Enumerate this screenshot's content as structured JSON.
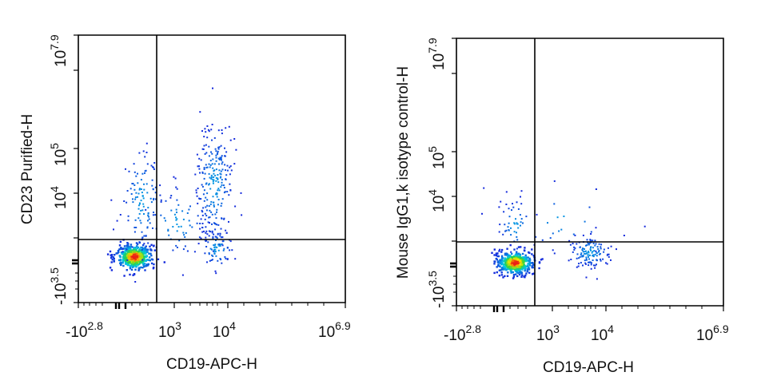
{
  "chart_data": [
    {
      "type": "scatter",
      "subtype": "flow-cytometry-density-dot-plot",
      "xlabel": "CD19-APC-H",
      "ylabel": "CD23 Purified-H",
      "x_ticks": [
        {
          "base": "-10",
          "exp": "2.8"
        },
        {
          "base": "10",
          "exp": "3"
        },
        {
          "base": "10",
          "exp": "4"
        },
        {
          "base": "10",
          "exp": "6.9"
        }
      ],
      "y_ticks": [
        {
          "base": "-10",
          "exp": "3.5"
        },
        {
          "base": "10",
          "exp": "4"
        },
        {
          "base": "10",
          "exp": "5"
        },
        {
          "base": "10",
          "exp": "7.9"
        }
      ],
      "gate": {
        "x": 0.29,
        "y": 0.77
      },
      "populations": [
        {
          "name": "CD19- CD23- cluster (dense core)",
          "cx": 0.21,
          "cy": 0.83,
          "sx": 0.035,
          "sy": 0.025,
          "n": 420
        },
        {
          "name": "CD19- CD23+ scatter",
          "cx": 0.24,
          "cy": 0.62,
          "sx": 0.04,
          "sy": 0.1,
          "n": 120
        },
        {
          "name": "CD19+ CD23+ (B cells)",
          "cx": 0.51,
          "cy": 0.56,
          "sx": 0.035,
          "sy": 0.11,
          "n": 240
        },
        {
          "name": "CD19+ CD23- tail",
          "cx": 0.52,
          "cy": 0.8,
          "sx": 0.03,
          "sy": 0.035,
          "n": 70
        },
        {
          "name": "intermediate events",
          "cx": 0.37,
          "cy": 0.7,
          "sx": 0.06,
          "sy": 0.07,
          "n": 60
        }
      ]
    },
    {
      "type": "scatter",
      "subtype": "flow-cytometry-density-dot-plot",
      "xlabel": "CD19-APC-H",
      "ylabel": "Mouse IgG1,k isotype control-H",
      "x_ticks": [
        {
          "base": "-10",
          "exp": "2.8"
        },
        {
          "base": "10",
          "exp": "3"
        },
        {
          "base": "10",
          "exp": "4"
        },
        {
          "base": "10",
          "exp": "6.9"
        }
      ],
      "y_ticks": [
        {
          "base": "-10",
          "exp": "3.5"
        },
        {
          "base": "10",
          "exp": "4"
        },
        {
          "base": "10",
          "exp": "5"
        },
        {
          "base": "10",
          "exp": "7.9"
        }
      ],
      "gate": {
        "x": 0.29,
        "y": 0.77
      },
      "populations": [
        {
          "name": "isotype negative cluster (dense core)",
          "cx": 0.22,
          "cy": 0.84,
          "sx": 0.035,
          "sy": 0.022,
          "n": 420
        },
        {
          "name": "CD19+ isotype-negative",
          "cx": 0.5,
          "cy": 0.8,
          "sx": 0.04,
          "sy": 0.03,
          "n": 130
        },
        {
          "name": "low scatter above gate",
          "cx": 0.22,
          "cy": 0.7,
          "sx": 0.03,
          "sy": 0.05,
          "n": 50
        },
        {
          "name": "sparse outliers",
          "cx": 0.4,
          "cy": 0.68,
          "sx": 0.1,
          "sy": 0.06,
          "n": 25
        }
      ]
    }
  ]
}
